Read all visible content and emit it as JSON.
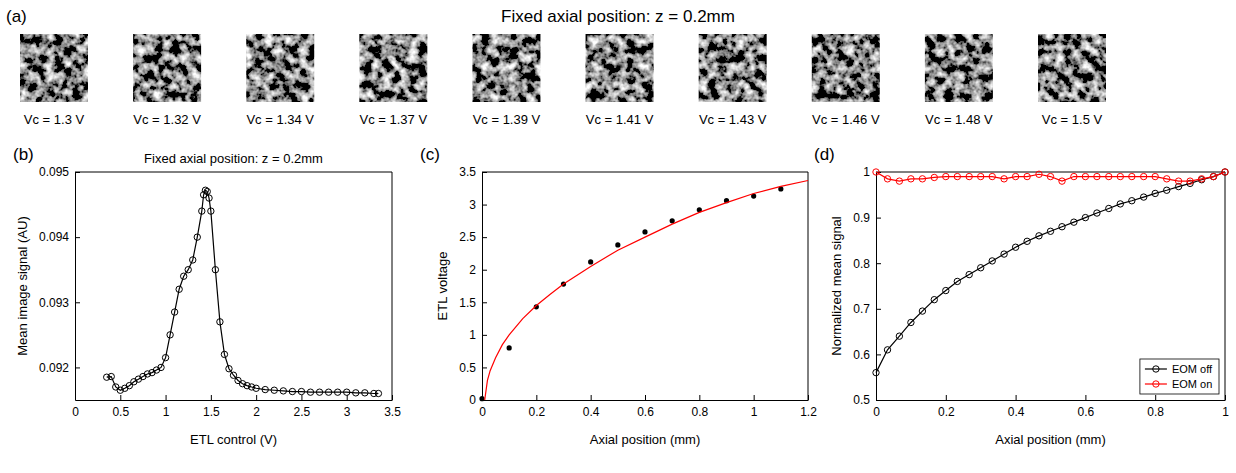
{
  "chart_data": [
    {
      "type": "images",
      "panel_label": "(a)",
      "title": "Fixed axial position: z = 0.2mm",
      "categories": [
        "Vc = 1.3 V",
        "Vc = 1.32 V",
        "Vc = 1.34 V",
        "Vc = 1.37 V",
        "Vc = 1.39 V",
        "Vc = 1.41 V",
        "Vc = 1.43 V",
        "Vc = 1.46 V",
        "Vc = 1.48 V",
        "Vc = 1.5 V"
      ]
    },
    {
      "type": "line",
      "panel_label": "(b)",
      "title": "Fixed axial position: z = 0.2mm",
      "x_label": "ETL control (V)",
      "y_label": "Mean image signal (AU)",
      "color": "#000000",
      "marker": "circle",
      "x": [
        0.35,
        0.4,
        0.45,
        0.5,
        0.55,
        0.6,
        0.65,
        0.7,
        0.75,
        0.8,
        0.85,
        0.9,
        0.95,
        1.0,
        1.05,
        1.1,
        1.15,
        1.2,
        1.25,
        1.3,
        1.35,
        1.4,
        1.42,
        1.44,
        1.46,
        1.48,
        1.5,
        1.55,
        1.6,
        1.65,
        1.7,
        1.75,
        1.8,
        1.85,
        1.9,
        1.95,
        2.0,
        2.1,
        2.2,
        2.3,
        2.4,
        2.5,
        2.6,
        2.7,
        2.8,
        2.9,
        3.0,
        3.1,
        3.2,
        3.3,
        3.35
      ],
      "values": [
        0.09185,
        0.09186,
        0.0917,
        0.09165,
        0.09168,
        0.09172,
        0.09178,
        0.09182,
        0.09186,
        0.0919,
        0.09192,
        0.09196,
        0.092,
        0.09215,
        0.0925,
        0.09285,
        0.0932,
        0.0934,
        0.0935,
        0.09365,
        0.094,
        0.0944,
        0.09465,
        0.09472,
        0.0947,
        0.0946,
        0.0944,
        0.0935,
        0.0927,
        0.0922,
        0.09198,
        0.09188,
        0.0918,
        0.09175,
        0.09172,
        0.0917,
        0.09168,
        0.09166,
        0.09165,
        0.09164,
        0.09163,
        0.09163,
        0.09162,
        0.09162,
        0.09162,
        0.09162,
        0.09162,
        0.09161,
        0.09161,
        0.0916,
        0.0916
      ],
      "xlim": [
        0,
        3.5
      ],
      "xticks": [
        0,
        0.5,
        1,
        1.5,
        2,
        2.5,
        3,
        3.5
      ],
      "ylim": [
        0.0915,
        0.095
      ],
      "yticks": [
        0.092,
        0.093,
        0.094,
        0.095
      ]
    },
    {
      "type": "scatter",
      "panel_label": "(c)",
      "x_label": "Axial position (mm)",
      "y_label": "ETL voltage",
      "series": [
        {
          "type": "scatter",
          "color": "#000000",
          "marker": "dot",
          "x": [
            0,
            0.1,
            0.2,
            0.3,
            0.4,
            0.5,
            0.6,
            0.7,
            0.8,
            0.9,
            1.0,
            1.1
          ],
          "values": [
            0.02,
            0.8,
            1.43,
            1.78,
            2.12,
            2.38,
            2.58,
            2.75,
            2.92,
            3.06,
            3.13,
            3.24
          ]
        },
        {
          "type": "line",
          "color": "#ff0000",
          "x": [
            0.01,
            0.02,
            0.03,
            0.05,
            0.075,
            0.1,
            0.15,
            0.2,
            0.25,
            0.3,
            0.4,
            0.5,
            0.6,
            0.7,
            0.8,
            0.9,
            1.0,
            1.1,
            1.2
          ],
          "values": [
            0,
            0.3,
            0.45,
            0.65,
            0.85,
            1.0,
            1.25,
            1.45,
            1.62,
            1.78,
            2.05,
            2.3,
            2.5,
            2.7,
            2.88,
            3.03,
            3.17,
            3.28,
            3.37
          ]
        }
      ],
      "xlim": [
        0,
        1.2
      ],
      "xticks": [
        0,
        0.2,
        0.4,
        0.6,
        0.8,
        1,
        1.2
      ],
      "ylim": [
        0,
        3.5
      ],
      "yticks": [
        0,
        0.5,
        1,
        1.5,
        2,
        2.5,
        3,
        3.5
      ]
    },
    {
      "type": "line",
      "panel_label": "(d)",
      "x_label": "Axial position (mm)",
      "y_label": "Normalized mean signal",
      "marker": "circle",
      "legend": "lower right",
      "series": [
        {
          "name": "EOM off",
          "color": "#000000",
          "x": [
            0,
            0.033,
            0.067,
            0.1,
            0.133,
            0.167,
            0.2,
            0.233,
            0.267,
            0.3,
            0.333,
            0.367,
            0.4,
            0.433,
            0.467,
            0.5,
            0.533,
            0.567,
            0.6,
            0.633,
            0.667,
            0.7,
            0.733,
            0.767,
            0.8,
            0.833,
            0.867,
            0.9,
            0.933,
            0.967,
            1
          ],
          "values": [
            0.56,
            0.61,
            0.64,
            0.67,
            0.695,
            0.72,
            0.74,
            0.76,
            0.775,
            0.79,
            0.805,
            0.82,
            0.835,
            0.848,
            0.86,
            0.87,
            0.88,
            0.89,
            0.9,
            0.91,
            0.92,
            0.93,
            0.937,
            0.945,
            0.953,
            0.96,
            0.968,
            0.975,
            0.983,
            0.99,
            1.0
          ]
        },
        {
          "name": "EOM on",
          "color": "#ff0000",
          "x": [
            0,
            0.033,
            0.067,
            0.1,
            0.133,
            0.167,
            0.2,
            0.233,
            0.267,
            0.3,
            0.333,
            0.367,
            0.4,
            0.433,
            0.467,
            0.5,
            0.533,
            0.567,
            0.6,
            0.633,
            0.667,
            0.7,
            0.733,
            0.767,
            0.8,
            0.833,
            0.867,
            0.9,
            0.933,
            0.967,
            1
          ],
          "values": [
            1.0,
            0.985,
            0.98,
            0.985,
            0.985,
            0.988,
            0.99,
            0.99,
            0.99,
            0.99,
            0.99,
            0.985,
            0.99,
            0.99,
            0.995,
            0.99,
            0.98,
            0.99,
            0.99,
            0.99,
            0.99,
            0.99,
            0.99,
            0.99,
            0.99,
            0.985,
            0.98,
            0.98,
            0.985,
            0.99,
            1.0
          ]
        }
      ],
      "xlim": [
        0,
        1
      ],
      "xticks": [
        0,
        0.2,
        0.4,
        0.6,
        0.8,
        1
      ],
      "ylim": [
        0.5,
        1
      ],
      "yticks": [
        0.5,
        0.6,
        0.7,
        0.8,
        0.9,
        1
      ]
    }
  ]
}
